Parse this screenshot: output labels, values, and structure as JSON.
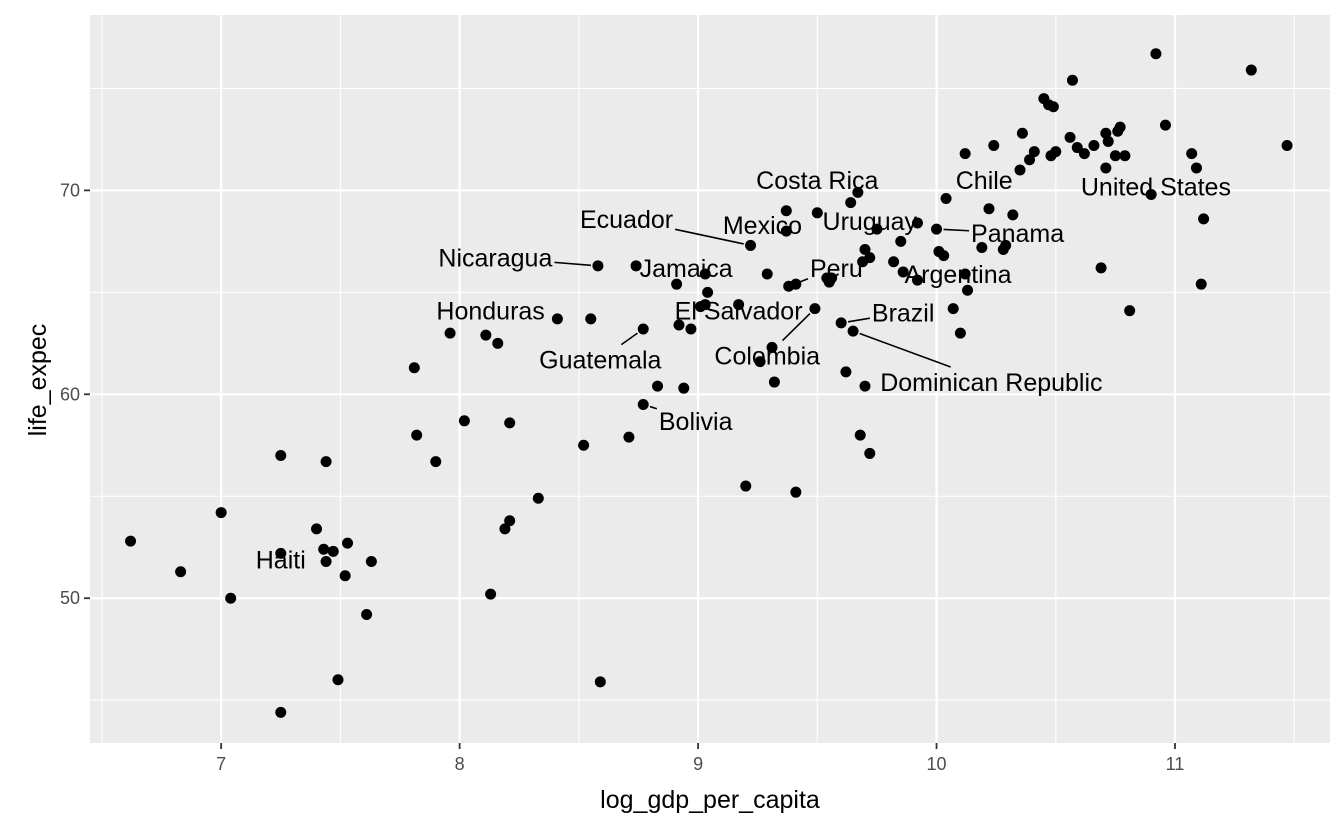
{
  "chart_data": {
    "type": "scatter",
    "title": "",
    "xlabel": "log_gdp_per_capita",
    "ylabel": "life_expec",
    "xlim": [
      6.45,
      11.65
    ],
    "ylim": [
      42.9,
      78.6
    ],
    "x_ticks": [
      7,
      8,
      9,
      10,
      11
    ],
    "y_ticks": [
      50,
      60,
      70
    ],
    "x_tick_labels": [
      "7",
      "8",
      "9",
      "10",
      "11"
    ],
    "y_tick_labels": [
      "50",
      "60",
      "70"
    ],
    "grid": true,
    "legend": "none",
    "colors": {
      "panel": "#ebebeb",
      "grid": "#ffffff",
      "point": "#000000"
    },
    "points": [
      [
        6.62,
        52.8
      ],
      [
        6.83,
        51.3
      ],
      [
        7.0,
        54.2
      ],
      [
        7.04,
        50.0
      ],
      [
        7.25,
        57.0
      ],
      [
        7.25,
        52.2
      ],
      [
        7.25,
        44.4
      ],
      [
        7.4,
        53.4
      ],
      [
        7.43,
        52.4
      ],
      [
        7.44,
        56.7
      ],
      [
        7.44,
        51.8
      ],
      [
        7.47,
        52.3
      ],
      [
        7.49,
        46.0
      ],
      [
        7.52,
        51.1
      ],
      [
        7.53,
        52.7
      ],
      [
        7.61,
        49.2
      ],
      [
        7.63,
        51.8
      ],
      [
        7.81,
        61.3
      ],
      [
        7.82,
        58.0
      ],
      [
        7.9,
        56.7
      ],
      [
        7.96,
        63.0
      ],
      [
        8.02,
        58.7
      ],
      [
        8.11,
        62.9
      ],
      [
        8.13,
        50.2
      ],
      [
        8.16,
        62.5
      ],
      [
        8.19,
        53.4
      ],
      [
        8.21,
        53.8
      ],
      [
        8.21,
        58.6
      ],
      [
        8.33,
        54.9
      ],
      [
        8.41,
        63.7
      ],
      [
        8.52,
        57.5
      ],
      [
        8.55,
        63.7
      ],
      [
        8.58,
        66.3
      ],
      [
        8.59,
        45.9
      ],
      [
        8.71,
        57.9
      ],
      [
        8.74,
        66.3
      ],
      [
        8.77,
        63.2
      ],
      [
        8.77,
        59.5
      ],
      [
        8.83,
        60.4
      ],
      [
        8.91,
        65.4
      ],
      [
        8.92,
        63.4
      ],
      [
        8.94,
        60.3
      ],
      [
        8.97,
        63.2
      ],
      [
        9.01,
        64.3
      ],
      [
        9.03,
        65.9
      ],
      [
        9.04,
        65.0
      ],
      [
        9.03,
        64.4
      ],
      [
        9.17,
        64.4
      ],
      [
        9.2,
        55.5
      ],
      [
        9.22,
        67.3
      ],
      [
        9.26,
        61.6
      ],
      [
        9.29,
        65.9
      ],
      [
        9.31,
        62.3
      ],
      [
        9.32,
        60.6
      ],
      [
        9.37,
        69.0
      ],
      [
        9.37,
        68.0
      ],
      [
        9.38,
        65.3
      ],
      [
        9.41,
        65.4
      ],
      [
        9.41,
        55.2
      ],
      [
        9.5,
        68.9
      ],
      [
        9.49,
        64.2
      ],
      [
        9.54,
        65.7
      ],
      [
        9.55,
        65.5
      ],
      [
        9.56,
        65.7
      ],
      [
        9.6,
        63.5
      ],
      [
        9.62,
        61.1
      ],
      [
        9.64,
        69.4
      ],
      [
        9.65,
        63.1
      ],
      [
        9.67,
        69.9
      ],
      [
        9.68,
        58.0
      ],
      [
        9.69,
        66.5
      ],
      [
        9.7,
        67.1
      ],
      [
        9.7,
        60.4
      ],
      [
        9.72,
        57.1
      ],
      [
        9.72,
        66.7
      ],
      [
        9.75,
        68.1
      ],
      [
        9.82,
        66.5
      ],
      [
        9.85,
        67.5
      ],
      [
        9.86,
        66.0
      ],
      [
        9.92,
        65.6
      ],
      [
        9.92,
        68.4
      ],
      [
        10.0,
        68.1
      ],
      [
        10.01,
        67.0
      ],
      [
        10.03,
        66.8
      ],
      [
        10.04,
        69.6
      ],
      [
        10.07,
        64.2
      ],
      [
        10.1,
        63.0
      ],
      [
        10.12,
        71.8
      ],
      [
        10.12,
        65.9
      ],
      [
        10.13,
        65.1
      ],
      [
        10.19,
        67.2
      ],
      [
        10.22,
        69.1
      ],
      [
        10.24,
        72.2
      ],
      [
        10.28,
        67.1
      ],
      [
        10.29,
        67.3
      ],
      [
        10.32,
        68.8
      ],
      [
        10.35,
        71.0
      ],
      [
        10.36,
        72.8
      ],
      [
        10.39,
        71.5
      ],
      [
        10.41,
        71.9
      ],
      [
        10.45,
        74.5
      ],
      [
        10.47,
        74.2
      ],
      [
        10.49,
        74.1
      ],
      [
        10.48,
        71.7
      ],
      [
        10.5,
        71.9
      ],
      [
        10.56,
        72.6
      ],
      [
        10.57,
        75.4
      ],
      [
        10.59,
        72.1
      ],
      [
        10.62,
        71.8
      ],
      [
        10.66,
        72.2
      ],
      [
        10.69,
        66.2
      ],
      [
        10.71,
        71.1
      ],
      [
        10.71,
        72.8
      ],
      [
        10.72,
        72.4
      ],
      [
        10.75,
        71.7
      ],
      [
        10.76,
        72.9
      ],
      [
        10.77,
        73.1
      ],
      [
        10.79,
        71.7
      ],
      [
        10.81,
        64.1
      ],
      [
        10.9,
        69.8
      ],
      [
        10.92,
        76.7
      ],
      [
        10.96,
        73.2
      ],
      [
        11.07,
        71.8
      ],
      [
        11.09,
        71.1
      ],
      [
        11.11,
        65.4
      ],
      [
        11.12,
        68.6
      ],
      [
        11.32,
        75.9
      ],
      [
        11.47,
        72.2
      ]
    ],
    "annotations": [
      {
        "label": "Costa Rica",
        "x": 9.67,
        "y": 69.9,
        "tx": 9.5,
        "ty": 70.5
      },
      {
        "label": "Chile",
        "x": 10.04,
        "y": 69.6,
        "tx": 10.2,
        "ty": 70.5
      },
      {
        "label": "United States",
        "x": 10.92,
        "y": 69.8,
        "tx": 10.92,
        "ty": 70.2
      },
      {
        "label": "Ecuador",
        "x": 9.22,
        "y": 67.3,
        "tx": 8.7,
        "ty": 68.6
      },
      {
        "label": "Mexico",
        "x": 9.37,
        "y": 69.0,
        "tx": 9.27,
        "ty": 68.3
      },
      {
        "label": "Uruguay",
        "x": 9.75,
        "y": 68.1,
        "tx": 9.72,
        "ty": 68.5
      },
      {
        "label": "Panama",
        "x": 10.0,
        "y": 68.1,
        "tx": 10.34,
        "ty": 67.9
      },
      {
        "label": "Nicaragua",
        "x": 8.58,
        "y": 66.3,
        "tx": 8.15,
        "ty": 66.7
      },
      {
        "label": "Jamaica",
        "x": 8.74,
        "y": 66.3,
        "tx": 8.95,
        "ty": 66.2
      },
      {
        "label": "Peru",
        "x": 9.38,
        "y": 65.3,
        "tx": 9.58,
        "ty": 66.2
      },
      {
        "label": "Argentina",
        "x": 9.86,
        "y": 66.0,
        "tx": 10.09,
        "ty": 65.9
      },
      {
        "label": "Honduras",
        "x": 8.41,
        "y": 63.7,
        "tx": 8.13,
        "ty": 64.1
      },
      {
        "label": "El Salvador",
        "x": 9.17,
        "y": 64.4,
        "tx": 9.17,
        "ty": 64.1
      },
      {
        "label": "Brazil",
        "x": 9.6,
        "y": 63.5,
        "tx": 9.86,
        "ty": 64.0
      },
      {
        "label": "Colombia",
        "x": 9.49,
        "y": 64.2,
        "tx": 9.29,
        "ty": 61.9
      },
      {
        "label": "Guatemala",
        "x": 8.77,
        "y": 63.2,
        "tx": 8.59,
        "ty": 61.7
      },
      {
        "label": "Dominican Republic",
        "x": 9.65,
        "y": 63.1,
        "tx": 10.23,
        "ty": 60.6
      },
      {
        "label": "Bolivia",
        "x": 8.77,
        "y": 59.5,
        "tx": 8.99,
        "ty": 58.7
      },
      {
        "label": "Haiti",
        "x": 7.25,
        "y": 52.2,
        "tx": 7.25,
        "ty": 51.9
      }
    ]
  }
}
